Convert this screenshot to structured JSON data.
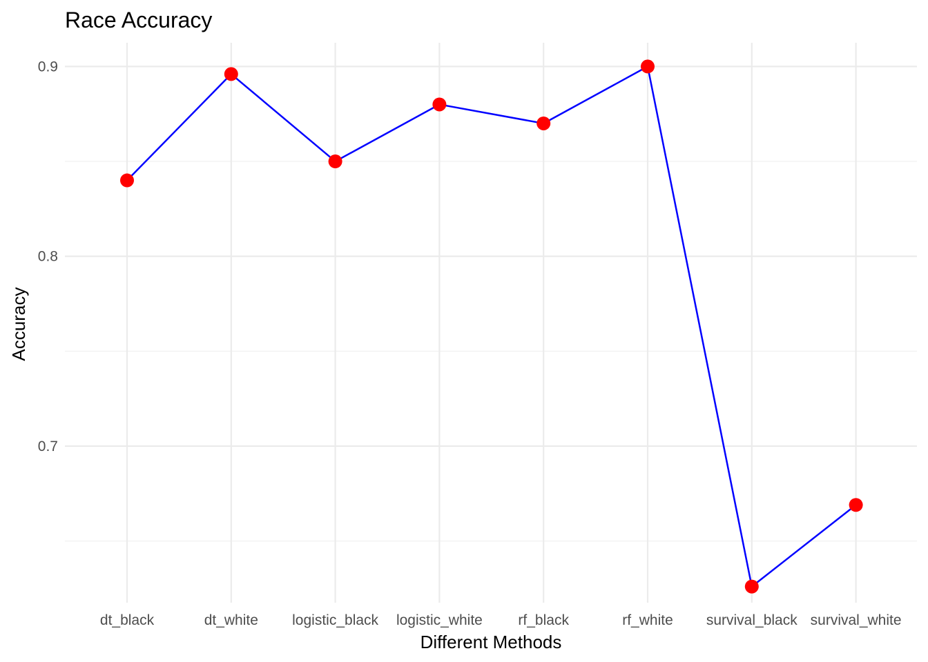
{
  "chart_data": {
    "type": "line",
    "title": "Race Accuracy",
    "xlabel": "Different Methods",
    "ylabel": "Accuracy",
    "categories": [
      "dt_black",
      "dt_white",
      "logistic_black",
      "logistic_white",
      "rf_black",
      "rf_white",
      "survival_black",
      "survival_white"
    ],
    "series": [
      {
        "values": [
          0.84,
          0.896,
          0.85,
          0.88,
          0.87,
          0.9,
          0.626,
          0.669
        ]
      }
    ],
    "ylim": [
      0.6175,
      0.9125
    ],
    "y_ticks": [
      0.7,
      0.8,
      0.9
    ],
    "y_tick_labels": [
      "0.7",
      "0.8",
      "0.9"
    ],
    "y_minor_ticks": [
      0.65,
      0.75,
      0.85
    ],
    "grid": true,
    "legend": "none",
    "colors": {
      "line": "#0000ff",
      "point": "#ff0000",
      "grid_major": "#ebebeb",
      "grid_minor": "#f0f0f0"
    }
  }
}
